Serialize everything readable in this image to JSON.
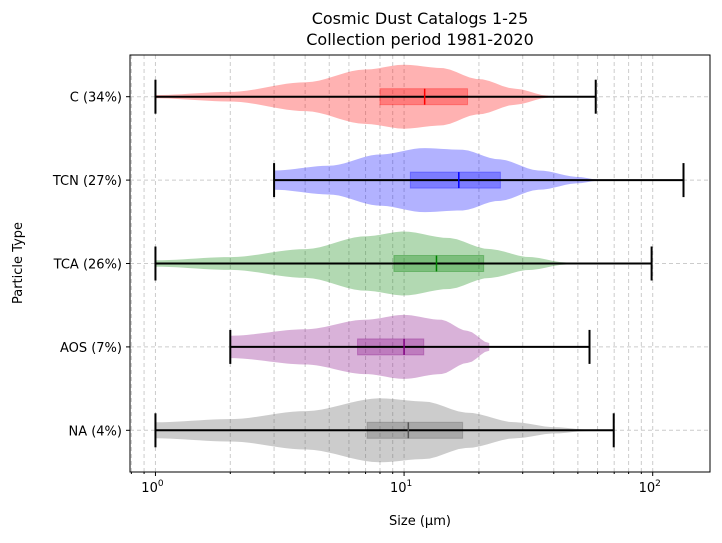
{
  "chart_data": {
    "type": "violin",
    "title": "Cosmic Dust Catalogs 1-25",
    "subtitle": "Collection period 1981-2020",
    "xlabel": "Size (µm)",
    "ylabel": "Particle Type",
    "xscale": "log",
    "xlim": [
      0.79,
      170
    ],
    "x_ticks": [
      {
        "value": 1,
        "base": "10",
        "exp": "0"
      },
      {
        "value": 10,
        "base": "10",
        "exp": "1"
      },
      {
        "value": 100,
        "base": "10",
        "exp": "2"
      }
    ],
    "grid": true,
    "series": [
      {
        "name": "C (34%)",
        "color": "#ff0000",
        "min": 1,
        "max": 59,
        "q1": 8.0,
        "median": 12.1,
        "q3": 18,
        "density": [
          [
            1,
            0.05
          ],
          [
            2,
            0.15
          ],
          [
            4,
            0.45
          ],
          [
            7,
            0.85
          ],
          [
            10,
            1
          ],
          [
            14,
            0.9
          ],
          [
            20,
            0.55
          ],
          [
            28,
            0.25
          ],
          [
            38,
            0.03
          ]
        ]
      },
      {
        "name": "TCN (27%)",
        "color": "#0000ff",
        "min": 3,
        "max": 133,
        "q1": 10.6,
        "median": 16.6,
        "q3": 24.4,
        "density": [
          [
            3,
            0.3
          ],
          [
            5,
            0.45
          ],
          [
            8,
            0.8
          ],
          [
            12,
            1
          ],
          [
            17,
            0.95
          ],
          [
            24,
            0.65
          ],
          [
            35,
            0.3
          ],
          [
            50,
            0.1
          ],
          [
            60,
            0.02
          ]
        ]
      },
      {
        "name": "TCA (26%)",
        "color": "#008000",
        "min": 1,
        "max": 99,
        "q1": 9.1,
        "median": 13.5,
        "q3": 20.9,
        "density": [
          [
            1,
            0.1
          ],
          [
            2,
            0.2
          ],
          [
            4,
            0.45
          ],
          [
            7,
            0.85
          ],
          [
            10,
            1
          ],
          [
            15,
            0.8
          ],
          [
            22,
            0.45
          ],
          [
            32,
            0.2
          ],
          [
            45,
            0.03
          ]
        ]
      },
      {
        "name": "AOS (7%)",
        "color": "#800080",
        "min": 2,
        "max": 55.7,
        "q1": 6.5,
        "median": 10,
        "q3": 12,
        "density": [
          [
            2,
            0.35
          ],
          [
            4,
            0.55
          ],
          [
            7,
            0.85
          ],
          [
            10,
            1
          ],
          [
            14,
            0.85
          ],
          [
            18,
            0.5
          ],
          [
            22,
            0.12
          ]
        ]
      },
      {
        "name": "NA (4%)",
        "color": "#555555",
        "min": 1,
        "max": 69.7,
        "q1": 7.1,
        "median": 10.4,
        "q3": 17.2,
        "density": [
          [
            1,
            0.25
          ],
          [
            2,
            0.35
          ],
          [
            4,
            0.6
          ],
          [
            8,
            1
          ],
          [
            12,
            0.9
          ],
          [
            18,
            0.55
          ],
          [
            28,
            0.25
          ],
          [
            40,
            0.1
          ],
          [
            55,
            0.02
          ]
        ]
      }
    ]
  }
}
